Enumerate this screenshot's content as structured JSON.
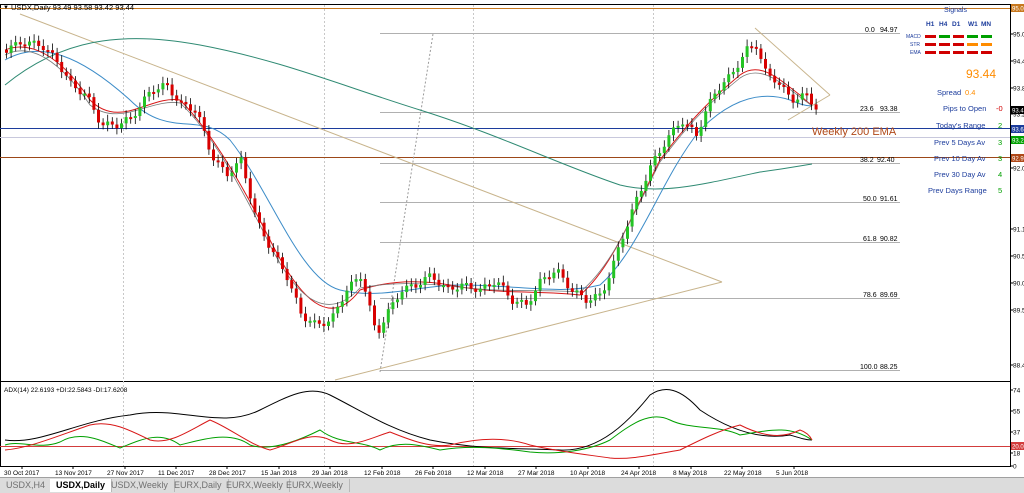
{
  "window": {
    "title_label": "USDX,Daily  93.49 93.58 93.42 93.44"
  },
  "fib": {
    "levels": [
      {
        "label": "0.0",
        "value": "94.97"
      },
      {
        "label": "23.6",
        "value": "93.38"
      },
      {
        "label": "38.2",
        "value": "92.40"
      },
      {
        "label": "50.0",
        "value": "91.61"
      },
      {
        "label": "61.8",
        "value": "90.82"
      },
      {
        "label": "78.6",
        "value": "89.69"
      },
      {
        "label": "100.0",
        "value": "88.25"
      }
    ]
  },
  "annotation": {
    "weekly_ema": "Weekly 200 EMA"
  },
  "signals": {
    "title": "Signals",
    "timeframes": [
      "H1",
      "H4",
      "D1",
      "W1",
      "MN"
    ],
    "rows": [
      {
        "label": "MACD",
        "colors": [
          "#d00000",
          "#00a000",
          "#d00000",
          "#00a000",
          "#00a000"
        ]
      },
      {
        "label": "STR",
        "colors": [
          "#d00000",
          "#d00000",
          "#d00000",
          "#ff8c00",
          "#ff8c00"
        ]
      },
      {
        "label": "EMA",
        "colors": [
          "#d00000",
          "#d00000",
          "#d00000",
          "#d00000",
          "#d00000"
        ]
      }
    ],
    "price": "93.44",
    "spread_label": "Spread",
    "spread_value": "0.4",
    "pips_label": "Pips to Open",
    "pips_value": "-0",
    "stats": [
      {
        "label": "Today's Range",
        "value": "2"
      },
      {
        "label": "Prev 5 Days Av",
        "value": "3"
      },
      {
        "label": "Prev 10 Day Av",
        "value": "3"
      },
      {
        "label": "Prev 30 Day Av",
        "value": "4"
      },
      {
        "label": "Prev Days Range",
        "value": "5"
      }
    ]
  },
  "price_axis": {
    "ticks": [
      "95.0",
      "94.4",
      "93.8",
      "93.2",
      "92.6",
      "92.0",
      "91.1",
      "90.5",
      "90.0",
      "89.5",
      "88.4"
    ],
    "tags": [
      {
        "text": "95.0",
        "color": "#c8781e"
      },
      {
        "text": "93.6",
        "color": "#1c3c9c"
      },
      {
        "text": "93.4",
        "color": "#000000"
      },
      {
        "text": "93.2",
        "color": "#00a000"
      },
      {
        "text": "92.9",
        "color": "#b04818"
      }
    ]
  },
  "adx": {
    "label": "ADX(14) 22.6193 +DI:22.5843 -DI:17.6208",
    "ticks": [
      "74",
      "55",
      "37",
      "18",
      "0"
    ],
    "tag": "20.0"
  },
  "time_axis": {
    "labels": [
      "30 Oct 2017",
      "13 Nov 2017",
      "27 Nov 2017",
      "11 Dec 2017",
      "28 Dec 2017",
      "15 Jan 2018",
      "29 Jan 2018",
      "12 Feb 2018",
      "26 Feb 2018",
      "12 Mar 2018",
      "27 Mar 2018",
      "10 Apr 2018",
      "24 Apr 2018",
      "8 May 2018",
      "22 May 2018",
      "5 Jun 2018"
    ]
  },
  "tabs": [
    "USDX,H4",
    "USDX,Daily",
    "USDX,Weekly",
    "EURX,Daily",
    "EURX,Weekly",
    "EURX,Weekly"
  ],
  "active_tab": 1
}
